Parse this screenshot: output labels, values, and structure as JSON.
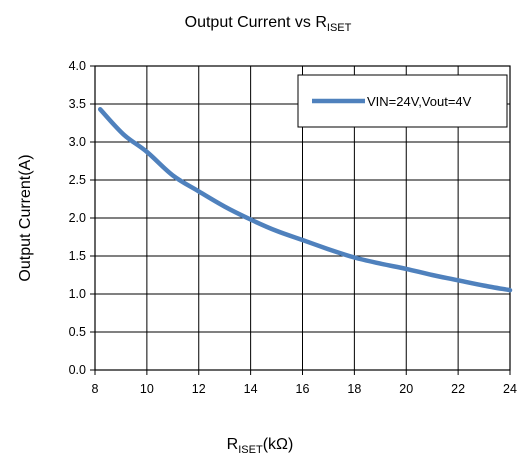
{
  "chart_data": {
    "type": "line",
    "title": {
      "main": "Output Current vs R",
      "sub": "ISET"
    },
    "xlabel": {
      "main": "R",
      "sub": "ISET",
      "suffix": "(kΩ)"
    },
    "ylabel": "Output Current(A)",
    "xlim": [
      8,
      24
    ],
    "ylim": [
      0,
      4
    ],
    "x_ticks": [
      "8",
      "10",
      "12",
      "14",
      "16",
      "18",
      "20",
      "22",
      "24"
    ],
    "y_ticks": [
      "0.0",
      "0.5",
      "1.0",
      "1.5",
      "2.0",
      "2.5",
      "3.0",
      "3.5",
      "4.0"
    ],
    "grid": true,
    "legend_position": "top-right",
    "series": [
      {
        "name": "VIN=24V,Vout=4V",
        "color": "#4f81bd",
        "x": [
          8.2,
          9.1,
          10.0,
          11.0,
          12.0,
          13.0,
          14.0,
          15.0,
          16.0,
          17.0,
          18.0,
          19.0,
          20.0,
          21.0,
          22.0,
          23.0,
          24.0
        ],
        "y": [
          3.43,
          3.1,
          2.87,
          2.56,
          2.35,
          2.15,
          1.98,
          1.83,
          1.71,
          1.59,
          1.48,
          1.4,
          1.33,
          1.25,
          1.18,
          1.11,
          1.05
        ]
      }
    ]
  }
}
